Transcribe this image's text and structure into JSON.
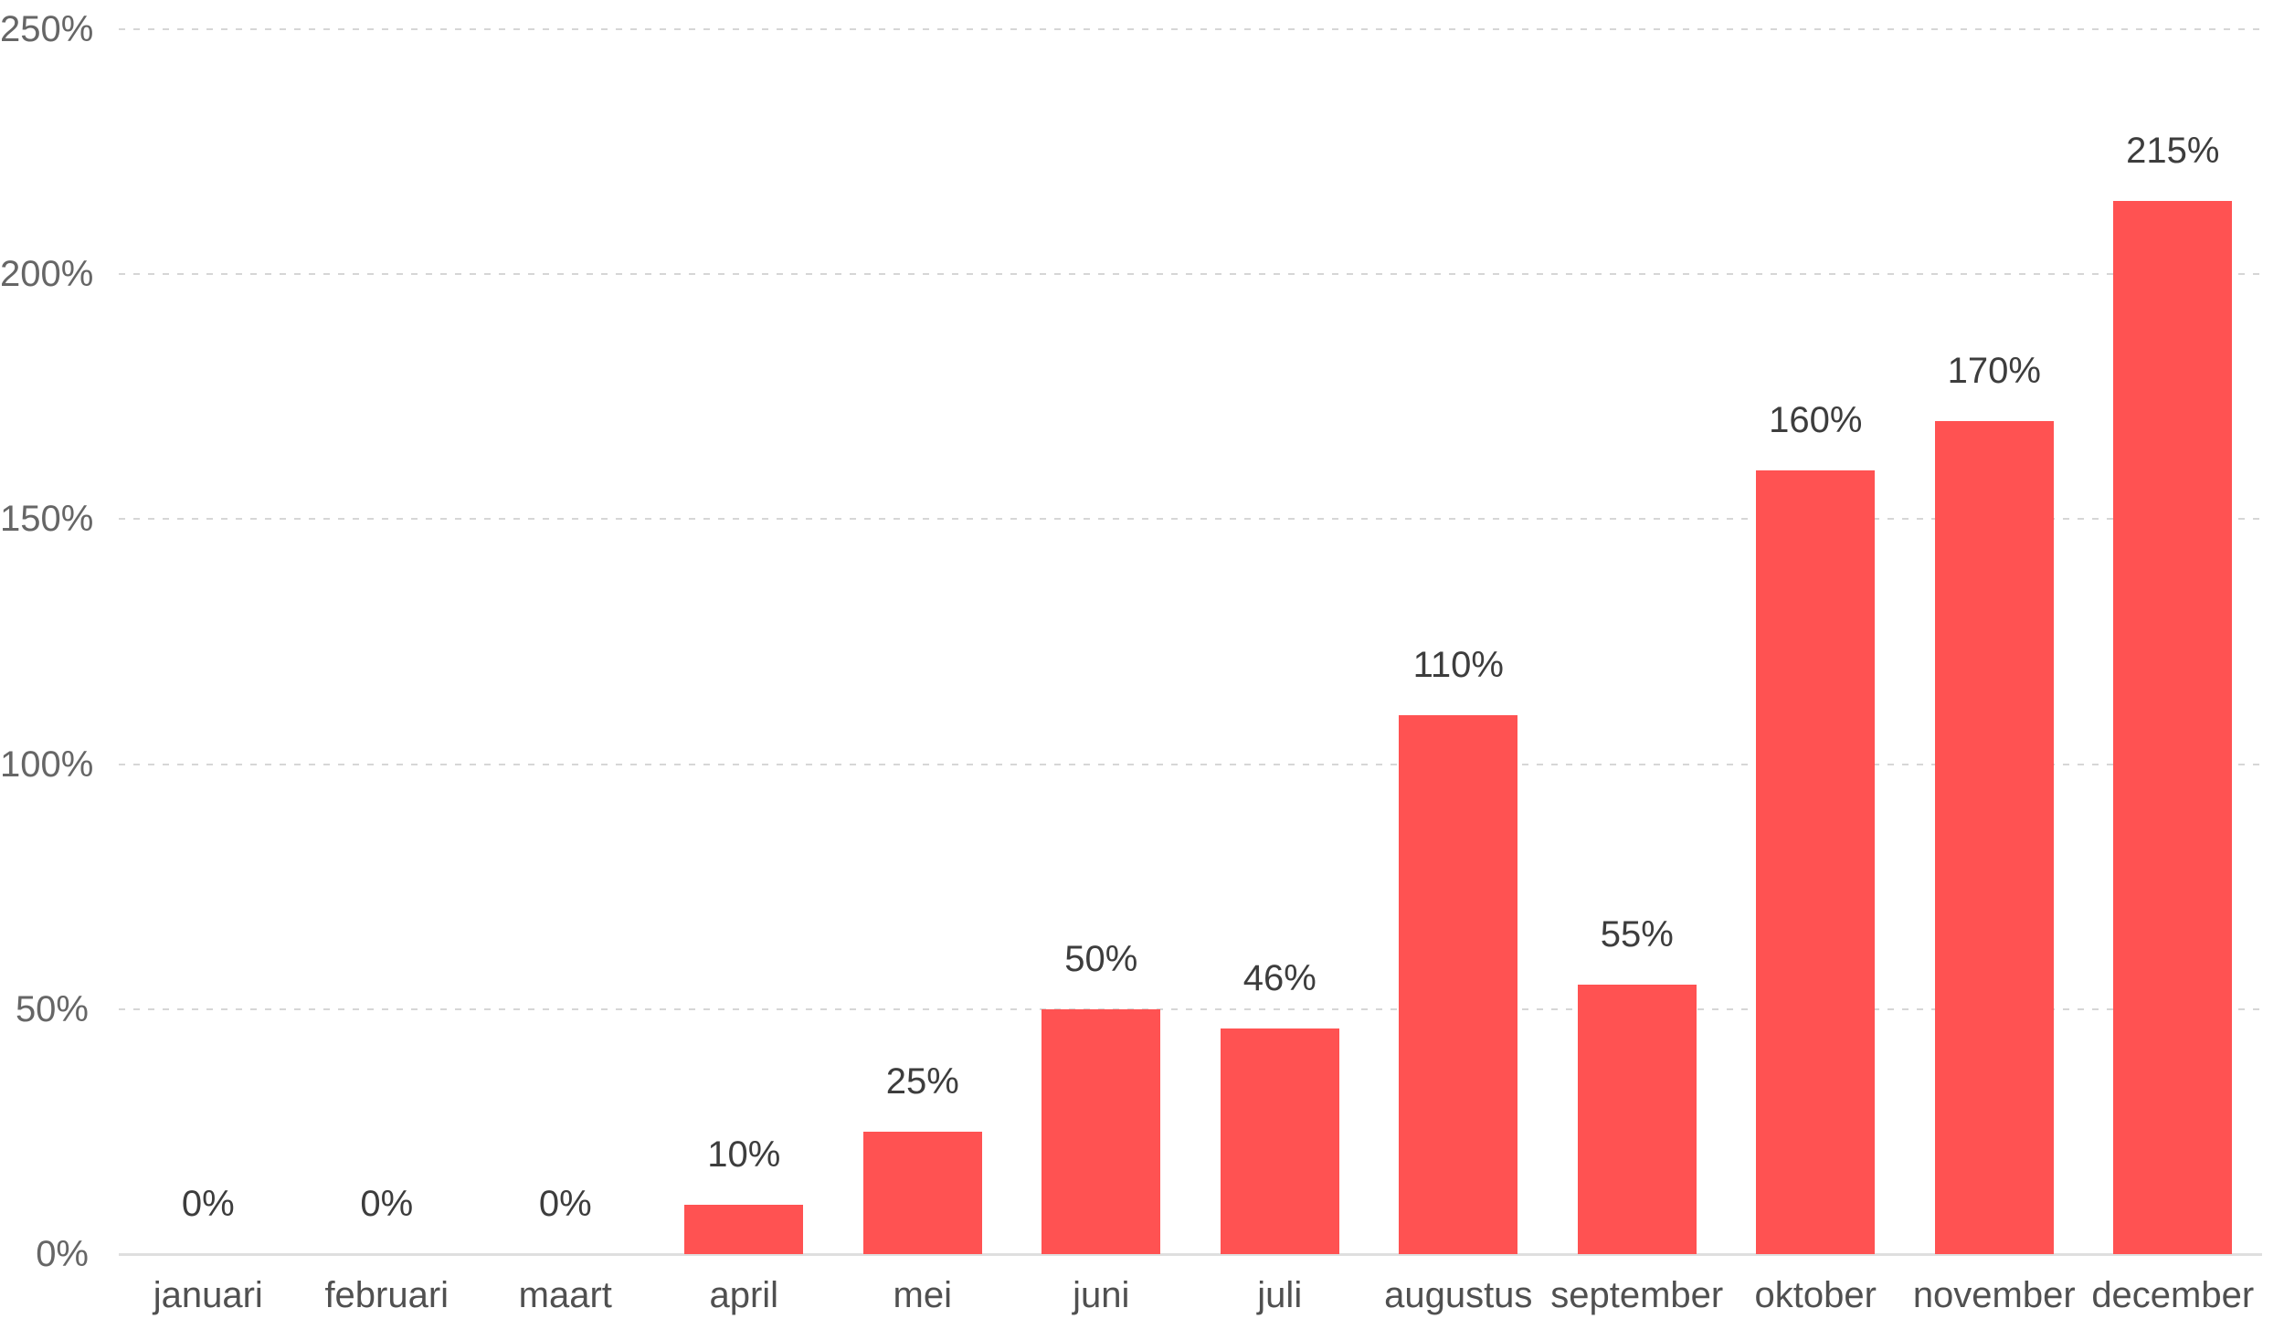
{
  "chart_data": {
    "type": "bar",
    "title": "",
    "xlabel": "",
    "ylabel": "",
    "categories": [
      "januari",
      "februari",
      "maart",
      "april",
      "mei",
      "juni",
      "juli",
      "augustus",
      "september",
      "oktober",
      "november",
      "december"
    ],
    "values": [
      0,
      0,
      0,
      10,
      25,
      50,
      46,
      110,
      55,
      160,
      170,
      215
    ],
    "bar_labels": [
      "0%",
      "0%",
      "0%",
      "10%",
      "25%",
      "50%",
      "46%",
      "110%",
      "55%",
      "160%",
      "170%",
      "215%"
    ],
    "ylim": [
      0,
      250
    ],
    "ytick_values": [
      0,
      50,
      100,
      150,
      200,
      250
    ],
    "ytick_labels": [
      "0%",
      "50%",
      "100%",
      "150%",
      "200%",
      "250%"
    ],
    "grid": "horizontal-dashed",
    "legend": "none"
  },
  "style": {
    "bar_color": "#FF5252",
    "gridline_color": "#D6D6D6",
    "baseline_color": "#DFDFDF",
    "value_label_color": "#3D3D3D",
    "month_label_color": "#505050",
    "ytick_label_color": "#666666",
    "background": "#FFFFFF"
  }
}
